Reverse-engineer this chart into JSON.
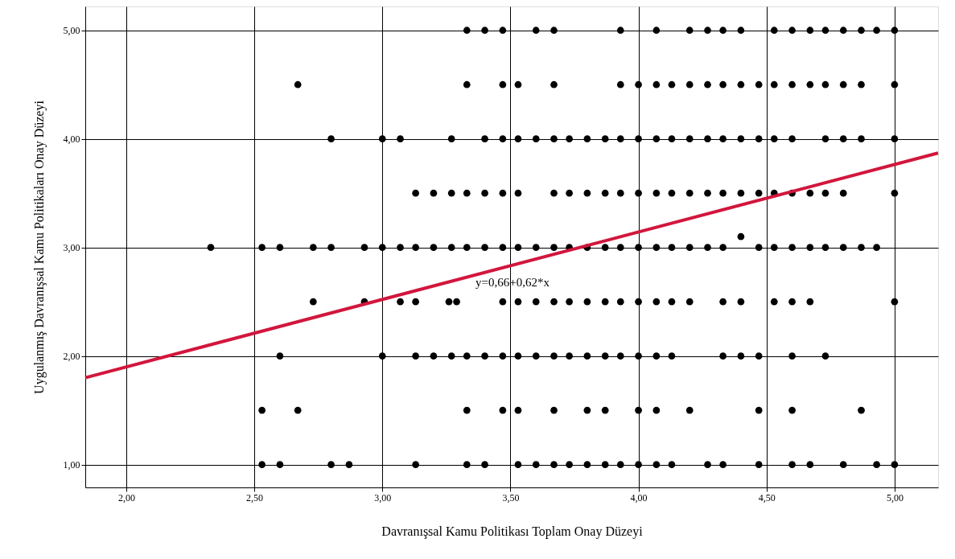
{
  "chart_data": {
    "type": "scatter",
    "xlabel": "Davranışsal Kamu Politikası Toplam Onay Düzeyi",
    "ylabel": "Uygulanmış Davranışsal Kamu Politikaları Onay Düzeyi",
    "xlim": [
      1.84,
      5.17
    ],
    "ylim": [
      0.79,
      5.22
    ],
    "xticks": [
      {
        "value": 2,
        "label": "2,00"
      },
      {
        "value": 2.5,
        "label": "2,50"
      },
      {
        "value": 3,
        "label": "3,00"
      },
      {
        "value": 3.5,
        "label": "3,50"
      },
      {
        "value": 4,
        "label": "4,00"
      },
      {
        "value": 4.5,
        "label": "4,50"
      },
      {
        "value": 5,
        "label": "5,00"
      }
    ],
    "yticks": [
      {
        "value": 1,
        "label": "1,00"
      },
      {
        "value": 2,
        "label": "2,00"
      },
      {
        "value": 3,
        "label": "3,00"
      },
      {
        "value": 4,
        "label": "4,00"
      },
      {
        "value": 5,
        "label": "5,00"
      }
    ],
    "grid": true,
    "annotations": [
      "y=0,66+0,62*x"
    ],
    "series": [
      {
        "marker": "circle",
        "color": "#000000",
        "x": [
          3.33,
          3.4,
          3.47,
          3.6,
          3.67,
          3.93,
          4.07,
          4.2,
          4.27,
          4.33,
          4.4,
          4.53,
          4.6,
          4.67,
          4.73,
          4.8,
          4.87,
          4.93,
          5.0,
          2.67,
          3.33,
          3.47,
          3.53,
          3.67,
          3.93,
          4.0,
          4.07,
          4.13,
          4.2,
          4.27,
          4.33,
          4.4,
          4.47,
          4.53,
          4.6,
          4.67,
          4.73,
          4.8,
          4.87,
          5.0,
          2.8,
          3.0,
          3.07,
          3.27,
          3.4,
          3.47,
          3.53,
          3.6,
          3.67,
          3.73,
          3.8,
          3.87,
          3.93,
          4.0,
          4.07,
          4.13,
          4.2,
          4.27,
          4.33,
          4.4,
          4.47,
          4.53,
          4.6,
          4.73,
          4.8,
          4.87,
          5.0,
          3.13,
          3.2,
          3.27,
          3.33,
          3.4,
          3.47,
          3.53,
          3.67,
          3.73,
          3.8,
          3.87,
          3.93,
          4.0,
          4.07,
          4.13,
          4.2,
          4.27,
          4.33,
          4.4,
          4.47,
          4.53,
          4.6,
          4.67,
          4.73,
          4.8,
          5.0,
          2.33,
          2.53,
          2.6,
          2.73,
          2.8,
          2.93,
          3.0,
          3.07,
          3.13,
          3.2,
          3.27,
          3.33,
          3.4,
          3.47,
          3.53,
          3.6,
          3.67,
          3.73,
          3.8,
          3.87,
          3.93,
          4.0,
          4.07,
          4.13,
          4.2,
          4.27,
          4.33,
          4.47,
          4.53,
          4.6,
          4.67,
          4.73,
          4.8,
          4.87,
          4.93,
          4.4,
          2.73,
          2.93,
          3.07,
          3.13,
          3.26,
          3.29,
          3.47,
          3.53,
          3.6,
          3.67,
          3.73,
          3.8,
          3.87,
          3.93,
          4.0,
          4.07,
          4.13,
          4.2,
          4.33,
          4.4,
          4.53,
          4.6,
          4.67,
          5.0,
          2.6,
          3.0,
          3.13,
          3.2,
          3.27,
          3.33,
          3.4,
          3.47,
          3.53,
          3.6,
          3.67,
          3.73,
          3.8,
          3.87,
          3.93,
          4.0,
          4.07,
          4.13,
          4.33,
          4.4,
          4.47,
          4.6,
          4.73,
          2.53,
          2.67,
          3.33,
          3.47,
          3.53,
          3.67,
          3.8,
          3.87,
          4.0,
          4.07,
          4.2,
          4.47,
          4.6,
          4.87,
          2.53,
          2.6,
          2.8,
          2.87,
          3.13,
          3.33,
          3.4,
          3.53,
          3.6,
          3.67,
          3.73,
          3.8,
          3.87,
          3.93,
          4.0,
          4.07,
          4.13,
          4.27,
          4.33,
          4.47,
          4.6,
          4.67,
          4.8,
          4.93,
          5.0
        ],
        "values": [
          5,
          5,
          5,
          5,
          5,
          5,
          5,
          5,
          5,
          5,
          5,
          5,
          5,
          5,
          5,
          5,
          5,
          5,
          5,
          4.5,
          4.5,
          4.5,
          4.5,
          4.5,
          4.5,
          4.5,
          4.5,
          4.5,
          4.5,
          4.5,
          4.5,
          4.5,
          4.5,
          4.5,
          4.5,
          4.5,
          4.5,
          4.5,
          4.5,
          4.5,
          4,
          4,
          4,
          4,
          4,
          4,
          4,
          4,
          4,
          4,
          4,
          4,
          4,
          4,
          4,
          4,
          4,
          4,
          4,
          4,
          4,
          4,
          4,
          4,
          4,
          4,
          4,
          3.5,
          3.5,
          3.5,
          3.5,
          3.5,
          3.5,
          3.5,
          3.5,
          3.5,
          3.5,
          3.5,
          3.5,
          3.5,
          3.5,
          3.5,
          3.5,
          3.5,
          3.5,
          3.5,
          3.5,
          3.5,
          3.5,
          3.5,
          3.5,
          3.5,
          3.5,
          3,
          3,
          3,
          3,
          3,
          3,
          3,
          3,
          3,
          3,
          3,
          3,
          3,
          3,
          3,
          3,
          3,
          3,
          3,
          3,
          3,
          3,
          3,
          3,
          3,
          3,
          3,
          3,
          3,
          3,
          3,
          3,
          3,
          3,
          3,
          3.1,
          2.5,
          2.5,
          2.5,
          2.5,
          2.5,
          2.5,
          2.5,
          2.5,
          2.5,
          2.5,
          2.5,
          2.5,
          2.5,
          2.5,
          2.5,
          2.5,
          2.5,
          2.5,
          2.5,
          2.5,
          2.5,
          2.5,
          2.5,
          2.5,
          2,
          2,
          2,
          2,
          2,
          2,
          2,
          2,
          2,
          2,
          2,
          2,
          2,
          2,
          2,
          2,
          2,
          2,
          2,
          2,
          2,
          2,
          2,
          1.5,
          1.5,
          1.5,
          1.5,
          1.5,
          1.5,
          1.5,
          1.5,
          1.5,
          1.5,
          1.5,
          1.5,
          1.5,
          1.5,
          1,
          1,
          1,
          1,
          1,
          1,
          1,
          1,
          1,
          1,
          1,
          1,
          1,
          1,
          1,
          1,
          1,
          1,
          1,
          1,
          1,
          1,
          1,
          1,
          1
        ]
      },
      {
        "type": "line",
        "line_style": "solid",
        "marker": "none",
        "color": "#d2163c",
        "x": [
          1.84,
          5.17
        ],
        "values": [
          1.8,
          3.87
        ]
      }
    ]
  }
}
